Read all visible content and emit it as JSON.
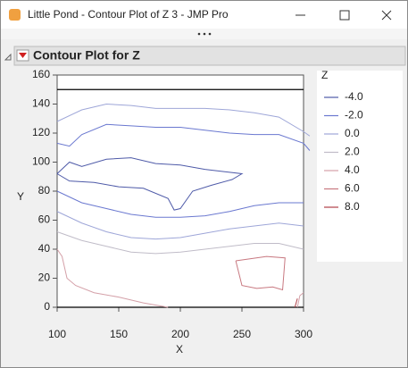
{
  "window_title": "Little Pond - Contour Plot of Z 3 - JMP Pro",
  "report_title": "Contour Plot for Z",
  "chart_data": {
    "type": "contour",
    "x_label": "X",
    "y_label": "Y",
    "legend_title": "Z",
    "xlim": [
      100,
      300
    ],
    "ylim": [
      0,
      160
    ],
    "xticks": [
      100,
      150,
      200,
      250,
      300
    ],
    "yticks": [
      0,
      20,
      40,
      60,
      80,
      100,
      120,
      140,
      160
    ],
    "hlines": [
      0,
      150
    ],
    "series": [
      {
        "name": "-4.0",
        "color": "#4e5aa8",
        "x": [
          100,
          110,
          120,
          140,
          160,
          180,
          200,
          220,
          240,
          250,
          242,
          225,
          210,
          200,
          195,
          190,
          170,
          150,
          130,
          110,
          100
        ],
        "values": [
          92,
          100,
          97,
          102,
          103,
          99,
          98,
          95,
          93,
          92,
          88,
          84,
          80,
          68,
          67,
          75,
          82,
          83,
          86,
          87,
          92
        ]
      },
      {
        "name": "-2.0",
        "color": "#6a78d0",
        "x": [
          100,
          110,
          120,
          140,
          160,
          180,
          200,
          220,
          240,
          260,
          280,
          300,
          305,
          null,
          100,
          120,
          140,
          160,
          180,
          200,
          220,
          240,
          260,
          280,
          300
        ],
        "values": [
          113,
          111,
          119,
          126,
          125,
          124,
          124,
          122,
          120,
          119,
          119,
          113,
          108,
          null,
          80,
          72,
          68,
          64,
          62,
          62,
          63,
          66,
          70,
          72,
          72
        ]
      },
      {
        "name": "0.0",
        "color": "#9ea6d8",
        "x": [
          100,
          120,
          140,
          160,
          180,
          200,
          220,
          240,
          260,
          280,
          300,
          305,
          null,
          100,
          120,
          140,
          160,
          180,
          200,
          220,
          240,
          260,
          280,
          300
        ],
        "values": [
          128,
          136,
          140,
          139,
          137,
          137,
          137,
          136,
          134,
          131,
          121,
          118,
          null,
          66,
          58,
          52,
          48,
          47,
          48,
          51,
          54,
          56,
          58,
          56
        ]
      },
      {
        "name": "2.0",
        "color": "#c0bcc8",
        "x": [
          100,
          120,
          140,
          160,
          180,
          200,
          220,
          240,
          260,
          280,
          300
        ],
        "values": [
          52,
          46,
          42,
          38,
          37,
          38,
          40,
          42,
          44,
          44,
          40
        ]
      },
      {
        "name": "4.0",
        "color": "#d4a0a8",
        "x": [
          100,
          104,
          108,
          115,
          130,
          150,
          170,
          190,
          null,
          295,
          297,
          300
        ],
        "values": [
          40,
          35,
          20,
          15,
          10,
          7,
          3,
          0,
          null,
          0,
          8,
          10
        ]
      },
      {
        "name": "6.0",
        "color": "#c87880",
        "x": [
          245,
          270,
          285,
          283,
          275,
          262,
          250,
          245
        ],
        "values": [
          32,
          35,
          34,
          12,
          14,
          13,
          15,
          32
        ]
      },
      {
        "name": "8.0",
        "color": "#b04048",
        "x": [
          293,
          295
        ],
        "values": [
          0,
          6
        ]
      }
    ]
  }
}
